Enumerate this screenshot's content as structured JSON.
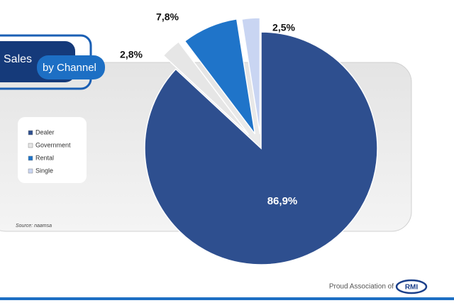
{
  "chart_data": {
    "type": "pie",
    "title": "Sales",
    "subtitle": "by Channel",
    "categories": [
      "Dealer",
      "Government",
      "Rental",
      "Single"
    ],
    "values": [
      86.9,
      2.8,
      7.8,
      2.5
    ],
    "value_labels": [
      "86,9%",
      "2,8%",
      "7,8%",
      "2,5%"
    ],
    "colors": [
      "#2e4f8f",
      "#e6e6e6",
      "#1f74c9",
      "#c9d5f2"
    ],
    "legend": "left",
    "source": "Source: naamsa"
  },
  "footer": {
    "text": "Proud Association of",
    "logo": "RMI"
  }
}
